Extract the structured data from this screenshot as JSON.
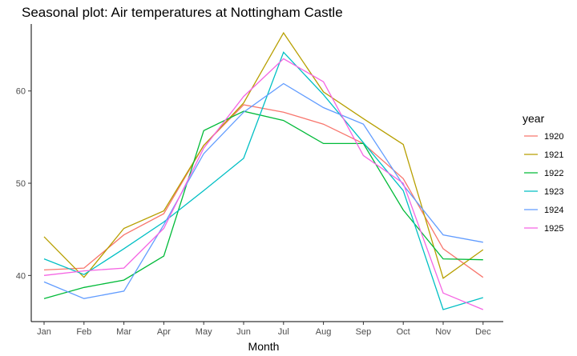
{
  "chart_data": {
    "type": "line",
    "title": "Seasonal plot: Air temperatures at Nottingham Castle",
    "xlabel": "Month",
    "ylabel": "",
    "ylim": [
      35,
      67
    ],
    "yticks": [
      40,
      50,
      60
    ],
    "categories": [
      "Jan",
      "Feb",
      "Mar",
      "Apr",
      "May",
      "Jun",
      "Jul",
      "Aug",
      "Sep",
      "Oct",
      "Nov",
      "Dec"
    ],
    "legend_title": "year",
    "legend_position": "right",
    "grid": false,
    "series": [
      {
        "name": "1920",
        "color": "#F8766D",
        "values": [
          40.6,
          40.8,
          44.4,
          46.7,
          54.1,
          58.5,
          57.7,
          56.4,
          54.3,
          50.5,
          42.9,
          39.8
        ]
      },
      {
        "name": "1921",
        "color": "#B79F00",
        "values": [
          44.2,
          39.8,
          45.1,
          47.0,
          54.1,
          58.7,
          66.3,
          59.9,
          57.0,
          54.2,
          39.7,
          42.8
        ]
      },
      {
        "name": "1922",
        "color": "#00BA38",
        "values": [
          37.5,
          38.7,
          39.5,
          42.1,
          55.7,
          57.8,
          56.8,
          54.3,
          54.3,
          47.1,
          41.8,
          41.7
        ]
      },
      {
        "name": "1923",
        "color": "#00BFC4",
        "values": [
          41.8,
          40.1,
          42.9,
          45.8,
          49.2,
          52.7,
          64.2,
          59.6,
          54.4,
          49.2,
          36.3,
          37.6
        ]
      },
      {
        "name": "1924",
        "color": "#619CFF",
        "values": [
          39.3,
          37.5,
          38.3,
          45.5,
          53.2,
          57.7,
          60.8,
          58.2,
          56.4,
          49.8,
          44.4,
          43.6
        ]
      },
      {
        "name": "1925",
        "color": "#F564E3",
        "values": [
          40.0,
          40.5,
          40.8,
          45.1,
          53.8,
          59.4,
          63.5,
          61.0,
          53.0,
          50.0,
          38.1,
          36.3
        ]
      }
    ]
  }
}
